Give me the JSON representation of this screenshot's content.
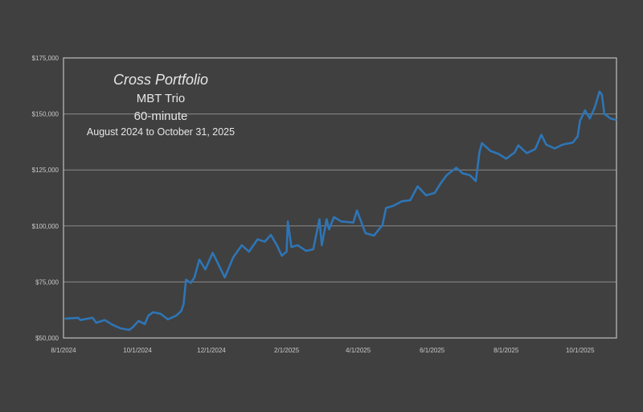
{
  "chart_data": {
    "type": "line",
    "title": "Cross Portfolio",
    "subtitle_lines": [
      "MBT Trio",
      "60-minute",
      "August 2024 to October 31, 2025"
    ],
    "xlabel": "",
    "ylabel": "",
    "xlim": [
      "2024-08-01",
      "2025-10-31"
    ],
    "ylim": [
      50000,
      175000
    ],
    "x_ticks": [
      "8/1/2024",
      "10/1/2024",
      "12/1/2024",
      "2/1/2025",
      "4/1/2025",
      "6/1/2025",
      "8/1/2025",
      "10/1/2025"
    ],
    "x_tick_dates": [
      "2024-08-01",
      "2024-10-01",
      "2024-12-01",
      "2025-02-01",
      "2025-04-01",
      "2025-06-01",
      "2025-08-01",
      "2025-10-01"
    ],
    "y_ticks": [
      50000,
      75000,
      100000,
      125000,
      150000,
      175000
    ],
    "y_tick_labels": [
      "$50,000",
      "$75,000",
      "$100,000",
      "$125,000",
      "$150,000",
      "$175,000"
    ],
    "grid": "horizontal",
    "line_color": "#2e75b6",
    "series": [
      {
        "x": [
          "2024-08-02",
          "2024-08-13",
          "2024-08-15",
          "2024-08-25",
          "2024-08-28",
          "2024-09-04",
          "2024-09-10",
          "2024-09-17",
          "2024-09-24",
          "2024-09-27",
          "2024-10-02",
          "2024-10-07",
          "2024-10-10",
          "2024-10-14",
          "2024-10-20",
          "2024-10-26",
          "2024-11-02",
          "2024-11-06",
          "2024-11-08",
          "2024-11-10",
          "2024-11-14",
          "2024-11-17",
          "2024-11-21",
          "2024-11-26",
          "2024-12-02",
          "2024-12-07",
          "2024-12-12",
          "2024-12-19",
          "2024-12-26",
          "2025-01-01",
          "2025-01-08",
          "2025-01-14",
          "2025-01-19",
          "2025-01-24",
          "2025-01-28",
          "2025-02-01",
          "2025-02-02",
          "2025-02-05",
          "2025-02-10",
          "2025-02-17",
          "2025-02-23",
          "2025-02-28",
          "2025-03-02",
          "2025-03-06",
          "2025-03-08",
          "2025-03-12",
          "2025-03-18",
          "2025-03-28",
          "2025-03-31",
          "2025-04-07",
          "2025-04-14",
          "2025-04-21",
          "2025-04-24",
          "2025-04-30",
          "2025-05-07",
          "2025-05-14",
          "2025-05-20",
          "2025-05-27",
          "2025-06-03",
          "2025-06-08",
          "2025-06-13",
          "2025-06-21",
          "2025-06-26",
          "2025-07-02",
          "2025-07-07",
          "2025-07-10",
          "2025-07-12",
          "2025-07-19",
          "2025-07-26",
          "2025-08-01",
          "2025-08-08",
          "2025-08-11",
          "2025-08-18",
          "2025-08-25",
          "2025-08-30",
          "2025-09-03",
          "2025-09-10",
          "2025-09-17",
          "2025-09-25",
          "2025-09-29",
          "2025-10-01",
          "2025-10-05",
          "2025-10-09",
          "2025-10-13",
          "2025-10-17",
          "2025-10-19",
          "2025-10-21",
          "2025-10-26",
          "2025-10-31"
        ],
        "y": [
          58600,
          59000,
          58000,
          59000,
          56800,
          58000,
          56000,
          54300,
          53600,
          54700,
          57600,
          56200,
          60000,
          61500,
          60800,
          58300,
          60000,
          62000,
          65000,
          76000,
          74600,
          77000,
          85000,
          80600,
          88000,
          82600,
          77000,
          86000,
          91400,
          88500,
          94000,
          93000,
          96000,
          91400,
          86700,
          88500,
          102000,
          90600,
          91400,
          88900,
          89600,
          103000,
          91400,
          103000,
          98500,
          104000,
          102000,
          101500,
          106900,
          96800,
          95700,
          100400,
          108000,
          109000,
          111000,
          111500,
          117700,
          113700,
          114700,
          119000,
          122700,
          126000,
          123500,
          122700,
          120000,
          132800,
          137000,
          133500,
          132100,
          130000,
          132800,
          136000,
          132500,
          134300,
          140700,
          136300,
          134600,
          136400,
          137200,
          140000,
          147000,
          151600,
          148000,
          152700,
          160000,
          158500,
          150000,
          148000,
          147300
        ]
      }
    ]
  }
}
